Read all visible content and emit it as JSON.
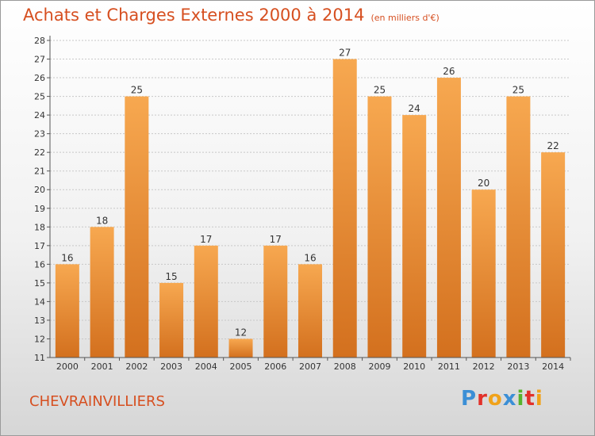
{
  "chart_data": {
    "type": "bar",
    "title": "Achats et Charges Externes 2000 à 2014",
    "subtitle": "(en milliers d'€)",
    "categories": [
      "2000",
      "2001",
      "2002",
      "2003",
      "2004",
      "2005",
      "2006",
      "2007",
      "2008",
      "2009",
      "2010",
      "2011",
      "2012",
      "2013",
      "2014"
    ],
    "values": [
      16,
      18,
      25,
      15,
      17,
      12,
      17,
      16,
      27,
      25,
      24,
      26,
      20,
      25,
      22
    ],
    "ylim": [
      11,
      28
    ],
    "yticks": [
      11,
      12,
      13,
      14,
      15,
      16,
      17,
      18,
      19,
      20,
      21,
      22,
      23,
      24,
      25,
      26,
      27,
      28
    ],
    "grid": true,
    "bar_color_top": "#f7a850",
    "bar_color_bottom": "#d3701e"
  },
  "footer": {
    "commune": "CHEVRAINVILLIERS",
    "logo_letters": [
      {
        "char": "P",
        "color": "#3b8fd6"
      },
      {
        "char": "r",
        "color": "#e2312a"
      },
      {
        "char": "o",
        "color": "#f0a21a"
      },
      {
        "char": "x",
        "color": "#3b8fd6"
      },
      {
        "char": "i",
        "color": "#57b22c"
      },
      {
        "char": "t",
        "color": "#e2312a"
      },
      {
        "char": "i",
        "color": "#f0a21a"
      }
    ]
  },
  "colors": {
    "title": "#d64f20",
    "grid": "#c8c8c8",
    "axis": "#555555"
  }
}
